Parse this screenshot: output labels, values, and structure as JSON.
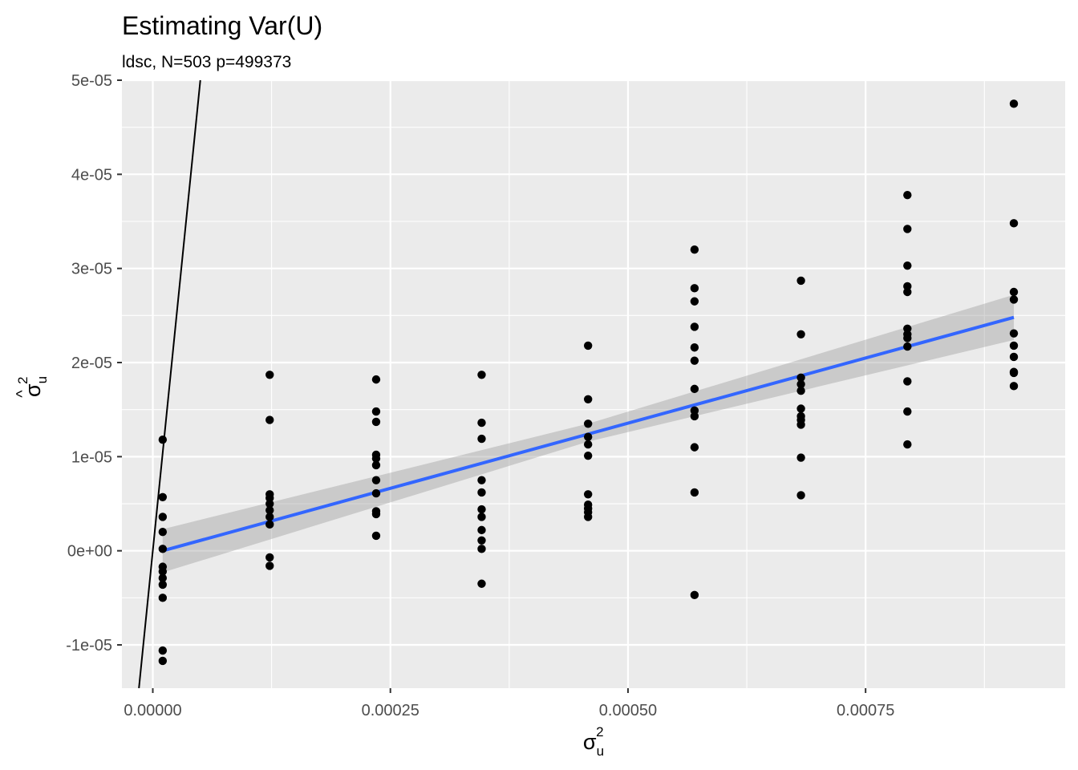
{
  "chart_data": {
    "type": "scatter",
    "title": "Estimating Var(U)",
    "subtitle": "ldsc, N=503 p=499373",
    "xlabel": {
      "base": "σ",
      "sub": "u",
      "sup": "2"
    },
    "ylabel": {
      "base": "σ",
      "hat": "^",
      "sub": "u",
      "sup": "2"
    },
    "xlim": [
      -3.25e-05,
      0.00096
    ],
    "ylim": [
      -1.46e-05,
      5e-05
    ],
    "x_ticks": [
      {
        "value": 0.0,
        "label": "0.00000"
      },
      {
        "value": 0.00025,
        "label": "0.00025"
      },
      {
        "value": 0.0005,
        "label": "0.00050"
      },
      {
        "value": 0.00075,
        "label": "0.00075"
      }
    ],
    "x_minor_ticks": [
      0.000125,
      0.000375,
      0.000625,
      0.000875
    ],
    "y_ticks": [
      {
        "value": -1e-05,
        "label": "-1e-05"
      },
      {
        "value": 0.0,
        "label": "0e+00"
      },
      {
        "value": 1e-05,
        "label": "1e-05"
      },
      {
        "value": 2e-05,
        "label": "2e-05"
      },
      {
        "value": 3e-05,
        "label": "3e-05"
      },
      {
        "value": 4e-05,
        "label": "4e-05"
      },
      {
        "value": 5e-05,
        "label": "5e-05"
      }
    ],
    "y_minor_ticks": [
      -5e-06,
      5e-06,
      1.5e-05,
      2.5e-05,
      3.5e-05,
      4.5e-05
    ],
    "grid": true,
    "points": [
      {
        "x": 1.04e-05,
        "ys": [
          1.18e-05,
          5.7e-06,
          3.6e-06,
          2e-06,
          2e-07,
          -1.7e-06,
          -2.2e-06,
          -2.9e-06,
          -3.6e-06,
          -5e-06,
          -1.06e-05,
          -1.17e-05
        ]
      },
      {
        "x": 0.000123,
        "ys": [
          1.87e-05,
          1.39e-05,
          6e-06,
          5.6e-06,
          5e-06,
          4.3e-06,
          3.6e-06,
          2.8e-06,
          -7e-07,
          -1.6e-06
        ]
      },
      {
        "x": 0.000235,
        "ys": [
          1.82e-05,
          1.48e-05,
          1.37e-05,
          1.02e-05,
          9.8e-06,
          9.1e-06,
          7.5e-06,
          6.1e-06,
          4.2e-06,
          3.9e-06,
          1.6e-06
        ]
      },
      {
        "x": 0.000346,
        "ys": [
          1.87e-05,
          1.36e-05,
          1.19e-05,
          7.5e-06,
          6.2e-06,
          4.4e-06,
          3.6e-06,
          2.2e-06,
          1.1e-06,
          2e-07,
          -3.5e-06
        ]
      },
      {
        "x": 0.000458,
        "ys": [
          2.18e-05,
          1.61e-05,
          1.35e-05,
          1.21e-05,
          1.13e-05,
          1.01e-05,
          6e-06,
          4.9e-06,
          4.5e-06,
          4.1e-06,
          3.6e-06
        ]
      },
      {
        "x": 0.00057,
        "ys": [
          3.2e-05,
          2.79e-05,
          2.65e-05,
          2.38e-05,
          2.16e-05,
          2.02e-05,
          1.72e-05,
          1.49e-05,
          1.43e-05,
          1.1e-05,
          6.2e-06,
          -4.7e-06
        ]
      },
      {
        "x": 0.000682,
        "ys": [
          2.87e-05,
          2.3e-05,
          1.84e-05,
          1.77e-05,
          1.7e-05,
          1.51e-05,
          1.43e-05,
          1.39e-05,
          1.34e-05,
          9.9e-06,
          5.9e-06
        ]
      },
      {
        "x": 0.000794,
        "ys": [
          3.78e-05,
          3.42e-05,
          3.03e-05,
          2.81e-05,
          2.75e-05,
          2.36e-05,
          2.3e-05,
          2.26e-05,
          2.17e-05,
          1.8e-05,
          1.48e-05,
          1.13e-05
        ]
      },
      {
        "x": 0.000906,
        "ys": [
          4.75e-05,
          3.48e-05,
          2.75e-05,
          2.67e-05,
          2.31e-05,
          2.18e-05,
          2.06e-05,
          1.9e-05,
          1.89e-05,
          1.75e-05
        ]
      }
    ],
    "fit_line": {
      "x": [
        1.04e-05,
        0.000906
      ],
      "y": [
        0.0,
        2.48e-05
      ],
      "color": "#3366FF"
    },
    "fit_band": {
      "x": [
        1.04e-05,
        0.000458,
        0.000906
      ],
      "lower": [
        -2.3e-06,
        1.16e-05,
        2.24e-05
      ],
      "upper": [
        2.3e-06,
        1.35e-05,
        2.72e-05
      ],
      "color": "#999999"
    },
    "identity_line": {
      "x": [
        -1.46e-05,
        5e-05
      ],
      "y": [
        -1.46e-05,
        5e-05
      ],
      "color": "#000000"
    },
    "point_color": "#000000",
    "panel_color": "#EBEBEB",
    "grid_color": "#FFFFFF"
  }
}
